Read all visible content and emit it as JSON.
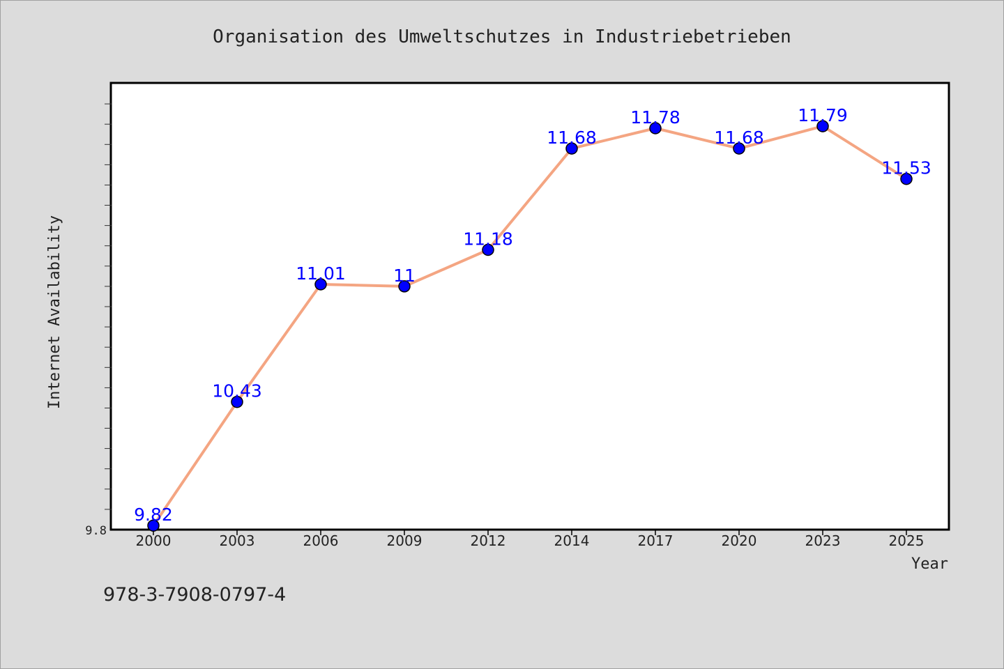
{
  "chart_data": {
    "type": "line",
    "title": "Organisation des Umweltschutzes in Industriebetrieben",
    "xlabel": "Year",
    "ylabel": "Internet Availability",
    "categories": [
      "2000",
      "2003",
      "2006",
      "2009",
      "2012",
      "2014",
      "2017",
      "2020",
      "2023",
      "2025"
    ],
    "values": [
      9.82,
      10.43,
      11.01,
      11.0,
      11.18,
      11.68,
      11.78,
      11.68,
      11.79,
      11.53
    ],
    "data_labels": [
      "9.82",
      "10.43",
      "11.01",
      "11",
      "11.18",
      "11.68",
      "11.78",
      "11.68",
      "11.79",
      "11.53"
    ],
    "ylim": [
      9.8,
      12.0
    ],
    "y_tick_labels": [
      "9.8"
    ],
    "grid": false,
    "line_color": "#f4a582",
    "marker_color": "#0000ff",
    "label_color": "#0000ff"
  },
  "footer": {
    "isbn": "978-3-7908-0797-4"
  }
}
